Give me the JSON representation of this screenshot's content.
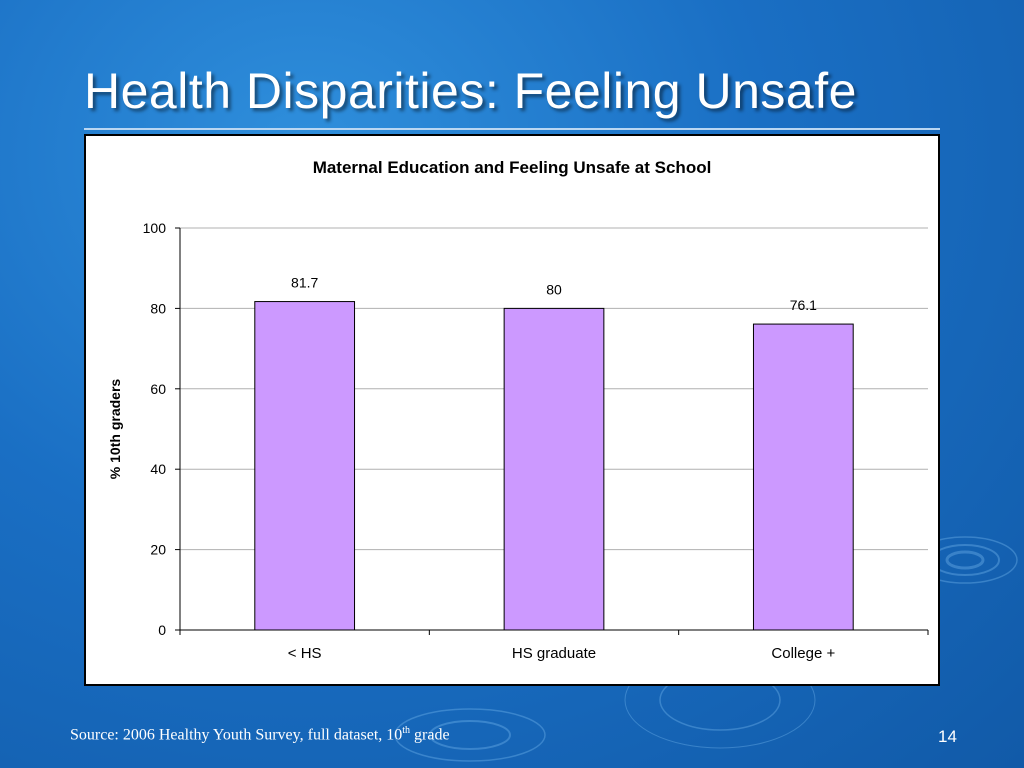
{
  "slide": {
    "title": "Health Disparities: Feeling Unsafe",
    "source_text": "Source: 2006 Healthy Youth Survey, full dataset, 10",
    "source_sup": "th",
    "source_suffix": " grade",
    "page_number": "14"
  },
  "chart_data": {
    "type": "bar",
    "title": "Maternal Education and Feeling Unsafe at School",
    "xlabel": "",
    "ylabel": "% 10th graders",
    "categories": [
      "< HS",
      "HS graduate",
      "College +"
    ],
    "values": [
      81.7,
      80,
      76.1
    ],
    "data_labels": [
      "81.7",
      "80",
      "76.1"
    ],
    "ylim": [
      0,
      100
    ],
    "yticks": [
      0,
      20,
      40,
      60,
      80,
      100
    ],
    "grid": true,
    "legend": "none",
    "bar_color": "#cc99ff",
    "bar_stroke": "#000000"
  }
}
